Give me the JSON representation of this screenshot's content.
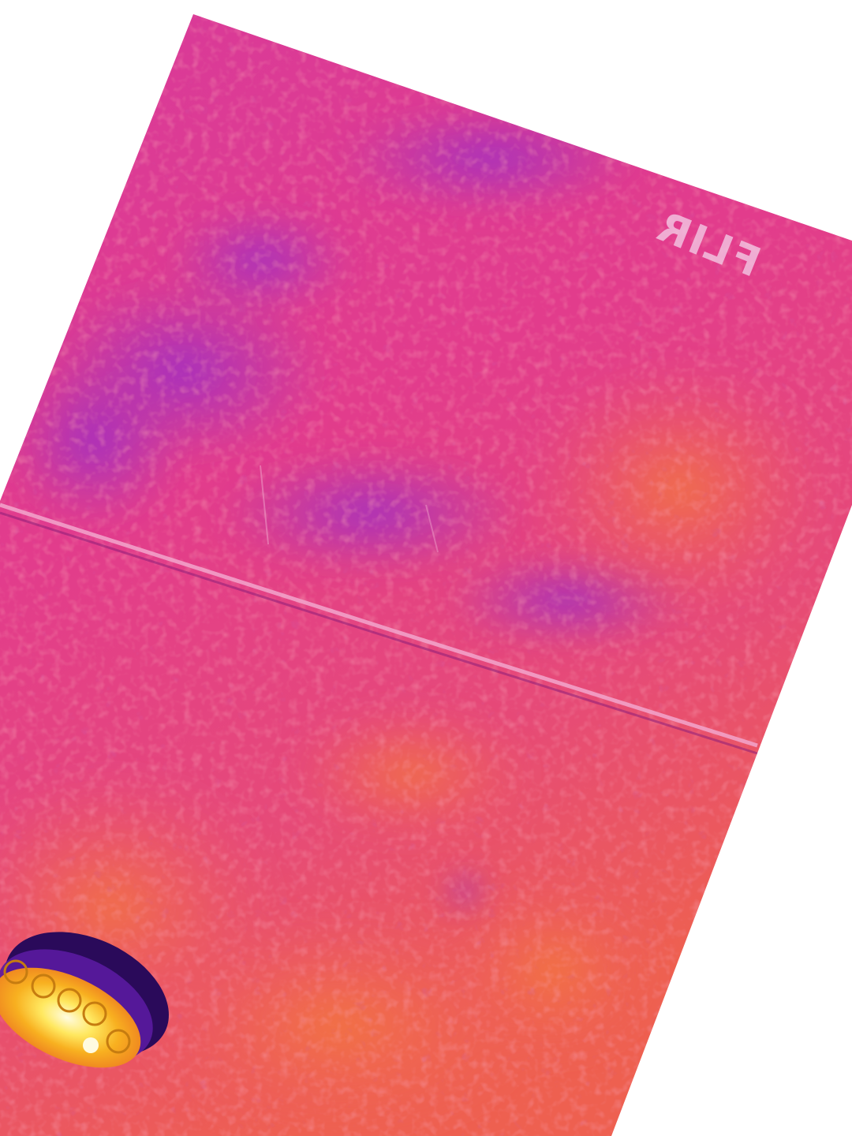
{
  "image": {
    "kind": "thermal-camera-photo",
    "palette": {
      "base": "#e23c8c",
      "warm": "#f06a4a",
      "cool": "#a43ac8",
      "cold": "#3a0c6a",
      "hot": "#ffe860",
      "hottest": "#fffbe0",
      "background": "#ffffff"
    },
    "watermark": "FLIR"
  }
}
